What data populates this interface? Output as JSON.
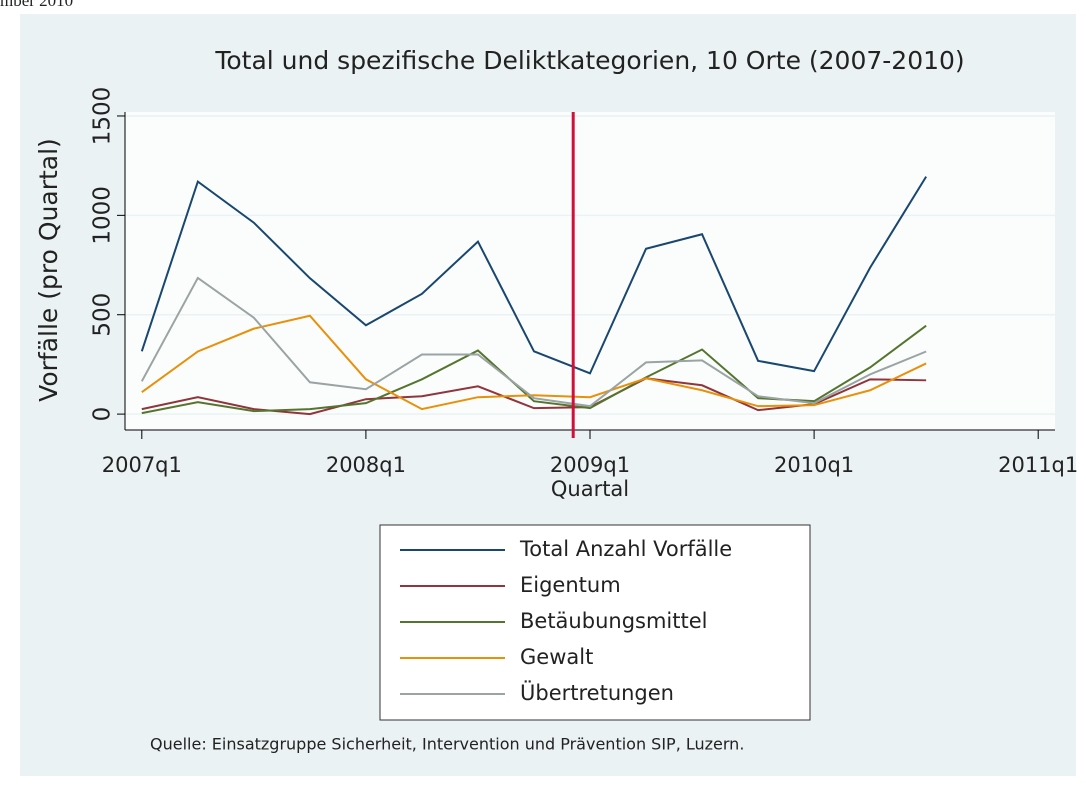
{
  "corner_text": "mber 2010",
  "chart_data": {
    "type": "line",
    "title": "Total und spezifische Deliktkategorien, 10 Orte (2007-2010)",
    "xlabel": "Quartal",
    "ylabel": "Vorfälle (pro Quartal)",
    "source": "Quelle: Einsatzgruppe Sicherheit, Intervention und Prävention SIP, Luzern.",
    "x": [
      188,
      189,
      190,
      191,
      192,
      193,
      194,
      195,
      196,
      197,
      198,
      199,
      200,
      201,
      202
    ],
    "xlim": [
      187.7,
      204.3
    ],
    "xticks": [
      {
        "value": 188,
        "label": "2007q1"
      },
      {
        "value": 192,
        "label": "2008q1"
      },
      {
        "value": 196,
        "label": "2009q1"
      },
      {
        "value": 200,
        "label": "2010q1"
      },
      {
        "value": 204,
        "label": "2011q1"
      }
    ],
    "ylim": [
      -80,
      1520
    ],
    "yticks": [
      0,
      500,
      1000,
      1500
    ],
    "grid": true,
    "xline": 195.7,
    "xline_color": "#d0103a",
    "series": [
      {
        "name": "Total Anzahl Vorfälle",
        "color": "#1a476f",
        "values": [
          316,
          1170,
          963,
          684,
          447,
          605,
          868,
          316,
          205,
          832,
          905,
          268,
          216,
          737,
          1195
        ]
      },
      {
        "name": "Eigentum",
        "color": "#90353b",
        "values": [
          25,
          85,
          25,
          0,
          75,
          90,
          140,
          30,
          35,
          180,
          145,
          20,
          50,
          175,
          170
        ]
      },
      {
        "name": "Betäubungsmittel",
        "color": "#55752f",
        "values": [
          5,
          60,
          15,
          25,
          55,
          175,
          320,
          65,
          30,
          185,
          325,
          80,
          65,
          235,
          445
        ]
      },
      {
        "name": "Gewalt",
        "color": "#e8900a",
        "values": [
          110,
          315,
          430,
          495,
          175,
          25,
          85,
          95,
          85,
          180,
          120,
          40,
          45,
          120,
          255
        ]
      },
      {
        "name": "Übertretungen",
        "color": "#9aa4a3",
        "values": [
          165,
          685,
          485,
          160,
          125,
          300,
          300,
          80,
          40,
          260,
          270,
          90,
          55,
          200,
          315
        ]
      }
    ]
  }
}
